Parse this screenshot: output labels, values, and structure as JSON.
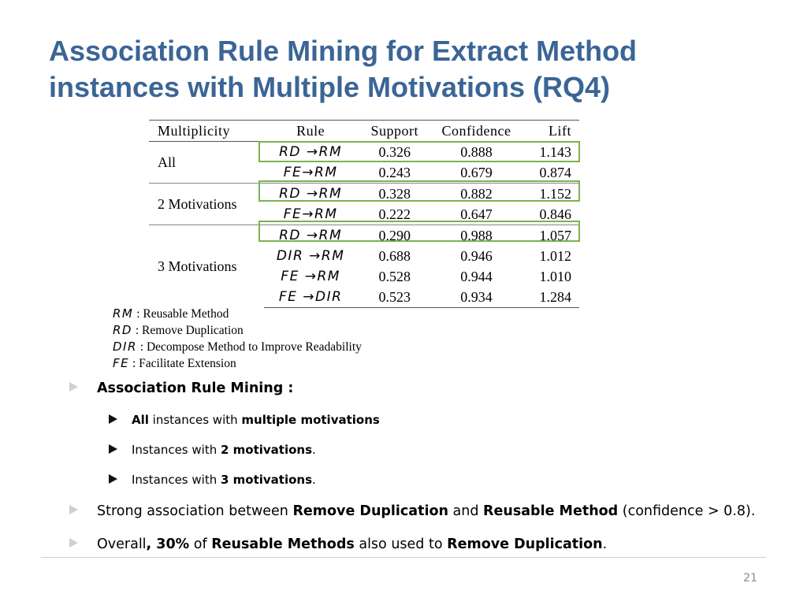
{
  "title": {
    "line1": "Association Rule Mining for Extract Method",
    "line2": "instances with Multiple Motivations (RQ4)"
  },
  "table": {
    "headers": [
      "Multiplicity",
      "Rule",
      "Support",
      "Confidence",
      "Lift"
    ],
    "groups": [
      {
        "label": "All",
        "rows": [
          {
            "rule": "RD →RM",
            "support": "0.326",
            "confidence": "0.888",
            "lift": "1.143"
          },
          {
            "rule": "FE→RM",
            "support": "0.243",
            "confidence": "0.679",
            "lift": "0.874"
          }
        ]
      },
      {
        "label": "2 Motivations",
        "rows": [
          {
            "rule": "RD →RM",
            "support": "0.328",
            "confidence": "0.882",
            "lift": "1.152"
          },
          {
            "rule": "FE→RM",
            "support": "0.222",
            "confidence": "0.647",
            "lift": "0.846"
          }
        ]
      },
      {
        "label": "3 Motivations",
        "rows": [
          {
            "rule": "RD →RM",
            "support": "0.290",
            "confidence": "0.988",
            "lift": "1.057"
          },
          {
            "rule": "DIR →RM",
            "support": "0.688",
            "confidence": "0.946",
            "lift": "1.012"
          },
          {
            "rule": "FE →RM",
            "support": "0.528",
            "confidence": "0.944",
            "lift": "1.010"
          },
          {
            "rule": "FE →DIR",
            "support": "0.523",
            "confidence": "0.934",
            "lift": "1.284"
          }
        ]
      }
    ],
    "highlight_color": "#7ab350"
  },
  "legend": [
    {
      "abbr": "RM",
      "text": ": Reusable Method"
    },
    {
      "abbr": "RD",
      "text": ": Remove Duplication"
    },
    {
      "abbr": "DIR",
      "text": ": Decompose Method to Improve Readability"
    },
    {
      "abbr": "FE",
      "text": ": Facilitate Extension"
    }
  ],
  "bullets": {
    "arm": {
      "b": "Association Rule Mining :"
    },
    "sub1": {
      "b1": "All",
      "t1": " instances with ",
      "b2": "multiple motivations"
    },
    "sub2": {
      "t1": "Instances with ",
      "b1": "2 motivations",
      "t2": "."
    },
    "sub3": {
      "t1": "Instances with ",
      "b1": "3 motivations",
      "t2": "."
    },
    "strong": {
      "t1": "Strong association between ",
      "b1": "Remove Duplication",
      "t2": " and ",
      "b2": "Reusable Method",
      "t3": " (confidence > 0.8)."
    },
    "overall": {
      "t1": "Overall",
      "b1": ", 30%",
      "t2": " of ",
      "b2": "Reusable Methods",
      "t3": " also used to ",
      "b3": "Remove Duplication",
      "t4": "."
    }
  },
  "page_number": "21",
  "colors": {
    "title": "#3b6596",
    "bullet_marker_light": "#cfcfcf",
    "page_number": "#8a8a8a"
  }
}
